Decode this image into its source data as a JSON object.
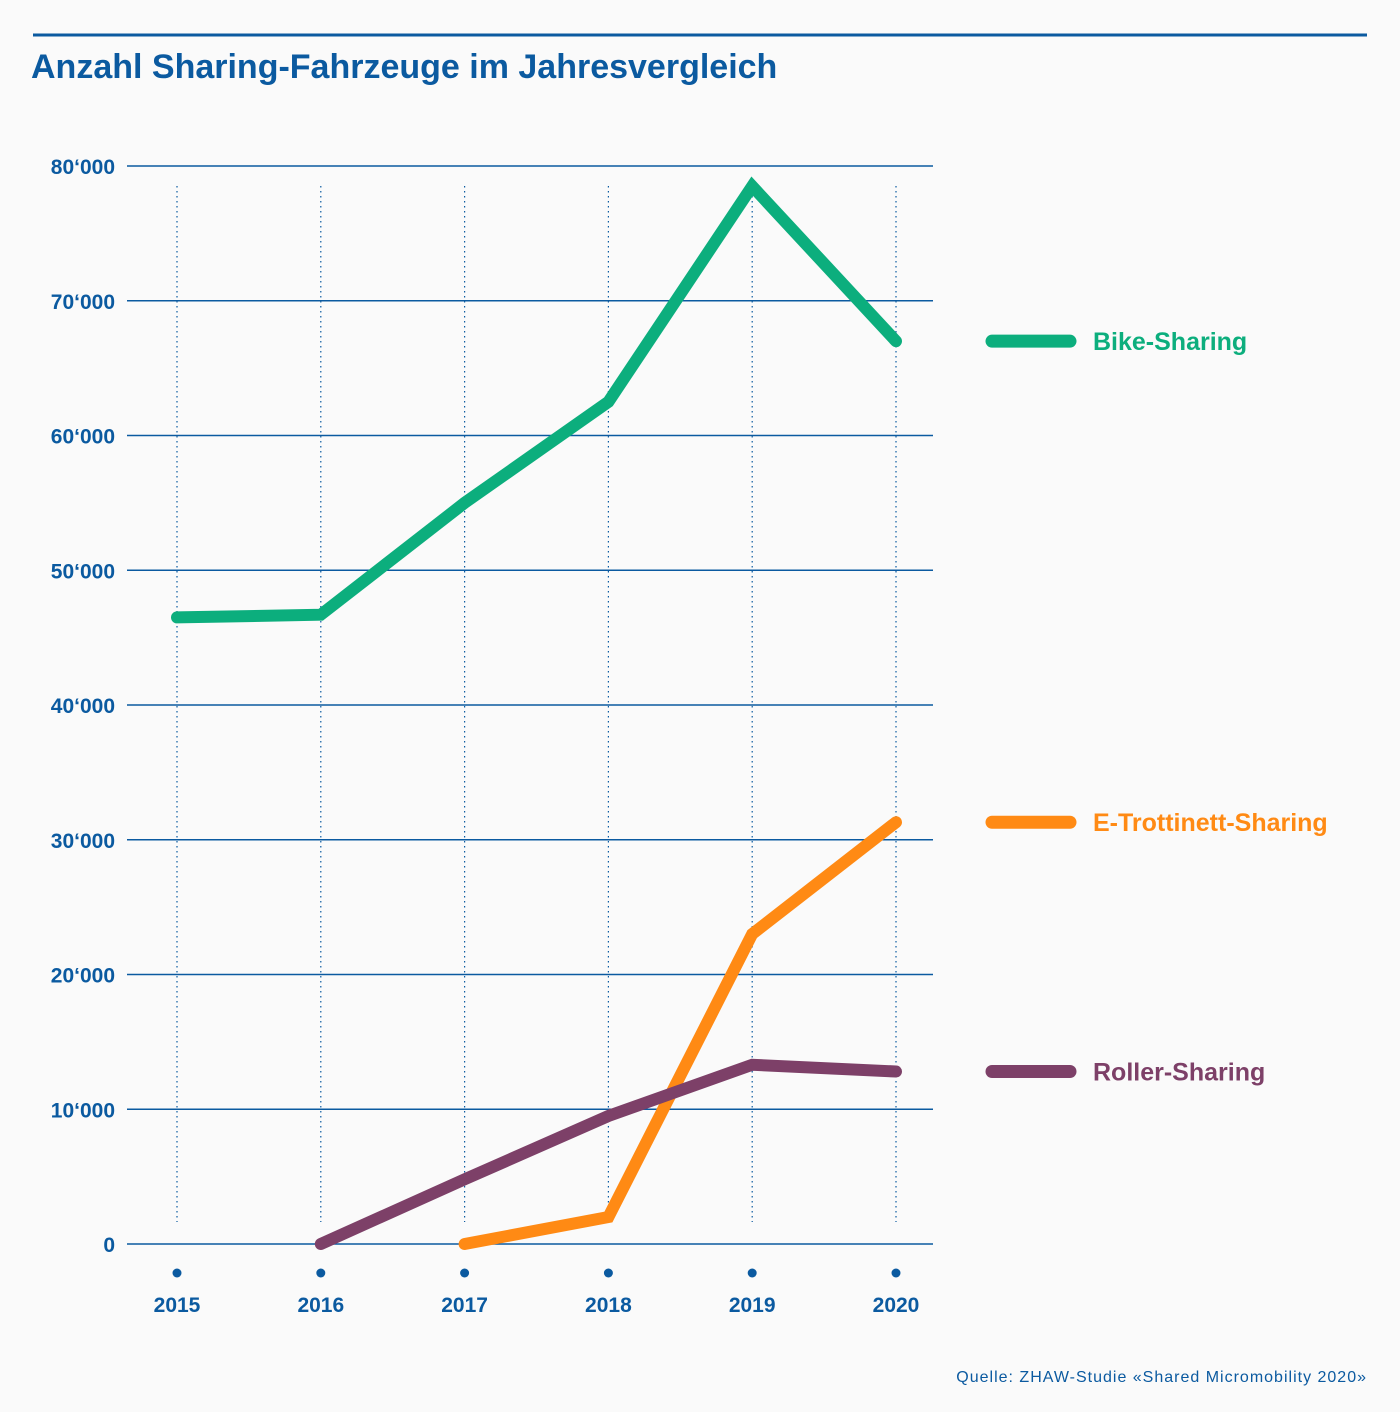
{
  "chart_data": {
    "type": "line",
    "title": "Anzahl Sharing-Fahrzeuge im Jahresvergleich",
    "xlabel": "",
    "ylabel": "",
    "x": [
      "2015",
      "2016",
      "2017",
      "2018",
      "2019",
      "2020"
    ],
    "ylim": [
      0,
      80000
    ],
    "yticks": [
      0,
      10000,
      20000,
      30000,
      40000,
      50000,
      60000,
      70000,
      80000
    ],
    "ytick_labels": [
      "0",
      "10‘000",
      "20‘000",
      "30‘000",
      "40‘000",
      "50‘000",
      "60‘000",
      "70‘000",
      "80‘000"
    ],
    "grid": "horizontal solid, vertical dotted",
    "legend_position": "right",
    "series": [
      {
        "name": "Bike-Sharing",
        "color": "#0cae7d",
        "values": [
          46500,
          46700,
          55000,
          62500,
          78500,
          67000
        ]
      },
      {
        "name": "E-Trottinett-Sharing",
        "color": "#ff8a14",
        "values": [
          null,
          null,
          0,
          2000,
          23000,
          31300
        ]
      },
      {
        "name": "Roller-Sharing",
        "color": "#7d4068",
        "values": [
          null,
          0,
          4800,
          9500,
          13300,
          12800
        ]
      }
    ],
    "source": "Quelle: ZHAW-Studie «Shared Micromobility 2020»"
  }
}
